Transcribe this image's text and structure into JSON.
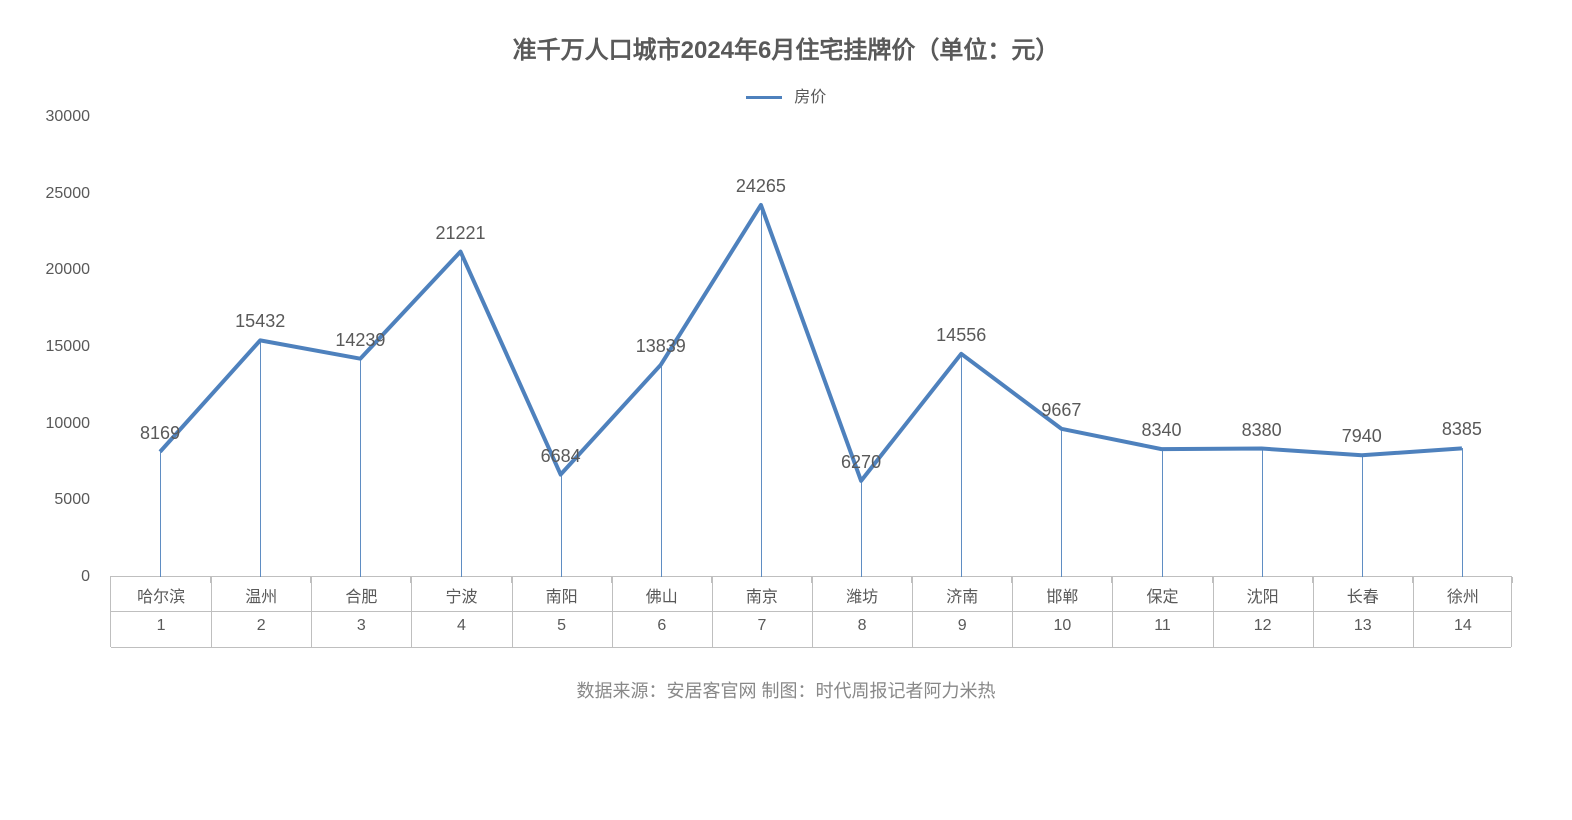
{
  "chart": {
    "type": "line",
    "title": "准千万人口城市2024年6月住宅挂牌价（单位：元）",
    "legend_label": "房价",
    "footer": "数据来源：安居客官网 制图：时代周报记者阿力米热",
    "cities": [
      "哈尔滨",
      "温州",
      "合肥",
      "宁波",
      "南阳",
      "佛山",
      "南京",
      "潍坊",
      "济南",
      "邯郸",
      "保定",
      "沈阳",
      "长春",
      "徐州"
    ],
    "indices": [
      "1",
      "2",
      "3",
      "4",
      "5",
      "6",
      "7",
      "8",
      "9",
      "10",
      "11",
      "12",
      "13",
      "14"
    ],
    "values": [
      8169,
      15432,
      14239,
      21221,
      6684,
      13839,
      24265,
      6270,
      14556,
      9667,
      8340,
      8380,
      7940,
      8385
    ],
    "ylim": [
      0,
      30000
    ],
    "ytick_step": 5000,
    "line_color": "#4e81bd",
    "line_width": 4,
    "grid_color": "#bfbfbf",
    "background_color": "#ffffff",
    "title_fontsize": 24,
    "label_fontsize": 18,
    "axis_fontsize": 16,
    "text_color": "#595959",
    "footer_color": "#888888"
  }
}
